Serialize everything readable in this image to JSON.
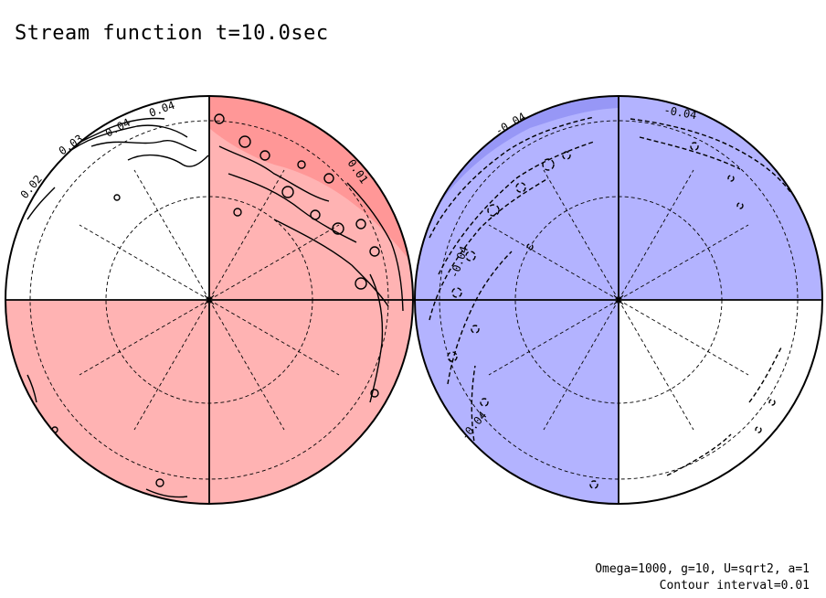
{
  "title": "Stream function t=10.0sec",
  "params": {
    "line1": "Omega=1000, g=10, U=sqrt2, a=1",
    "line2": "Contour interval=0.01"
  },
  "colors": {
    "positive_fill": "#ffb3b3",
    "positive_strong": "#ff8c8c",
    "negative_fill": "#b3b3ff",
    "negative_strong": "#8c8cf2",
    "line": "#000000"
  },
  "hemispheres": [
    {
      "name": "left",
      "labels": [
        "0.04",
        "0.04",
        "0.03",
        "0.02",
        "0.01"
      ]
    },
    {
      "name": "right",
      "labels": [
        "-0.04",
        "-0.04",
        "-0.04",
        "-0.04"
      ]
    }
  ]
}
